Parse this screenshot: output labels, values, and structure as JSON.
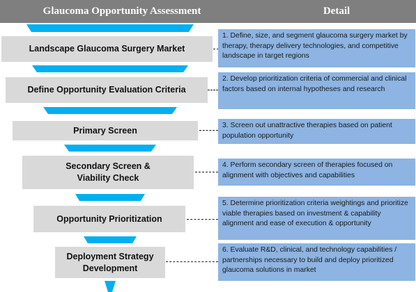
{
  "header": {
    "left_title": "Glaucoma Opportunity Assessment",
    "right_title": "Detail"
  },
  "stages": [
    {
      "label": "Landscape Glaucoma Surgery Market",
      "detail": "1. Define, size, and segment glaucoma surgery market by therapy, therapy delivery technologies, and competitive landscape in target regions"
    },
    {
      "label": "Define Opportunity Evaluation Criteria",
      "detail": "2. Develop prioritization criteria of commercial and clinical factors based on internal hypotheses and research"
    },
    {
      "label": "Primary Screen",
      "detail": "3. Screen out unattractive therapies based on patient population opportunity"
    },
    {
      "label": "Secondary Screen & Viability Check",
      "detail": "4. Perform secondary screen of therapies focused on alignment with objectives and capabilities"
    },
    {
      "label": "Opportunity Prioritization",
      "detail": "5. Determine prioritization criteria weightings and prioritize viable therapies based on investment & capability alignment and ease of execution & opportunity"
    },
    {
      "label": "Deployment Strategy Development",
      "detail": "6. Evaluate R&D, clinical, and technology capabilities / partnerships necessary to build and deploy prioritized glaucoma solutions in market"
    }
  ],
  "colors": {
    "header_bg": "#7f7f7f",
    "stage_bg": "#d9d9d9",
    "detail_bg": "#8db4e2",
    "funnel_blue": "#00b0f0"
  }
}
